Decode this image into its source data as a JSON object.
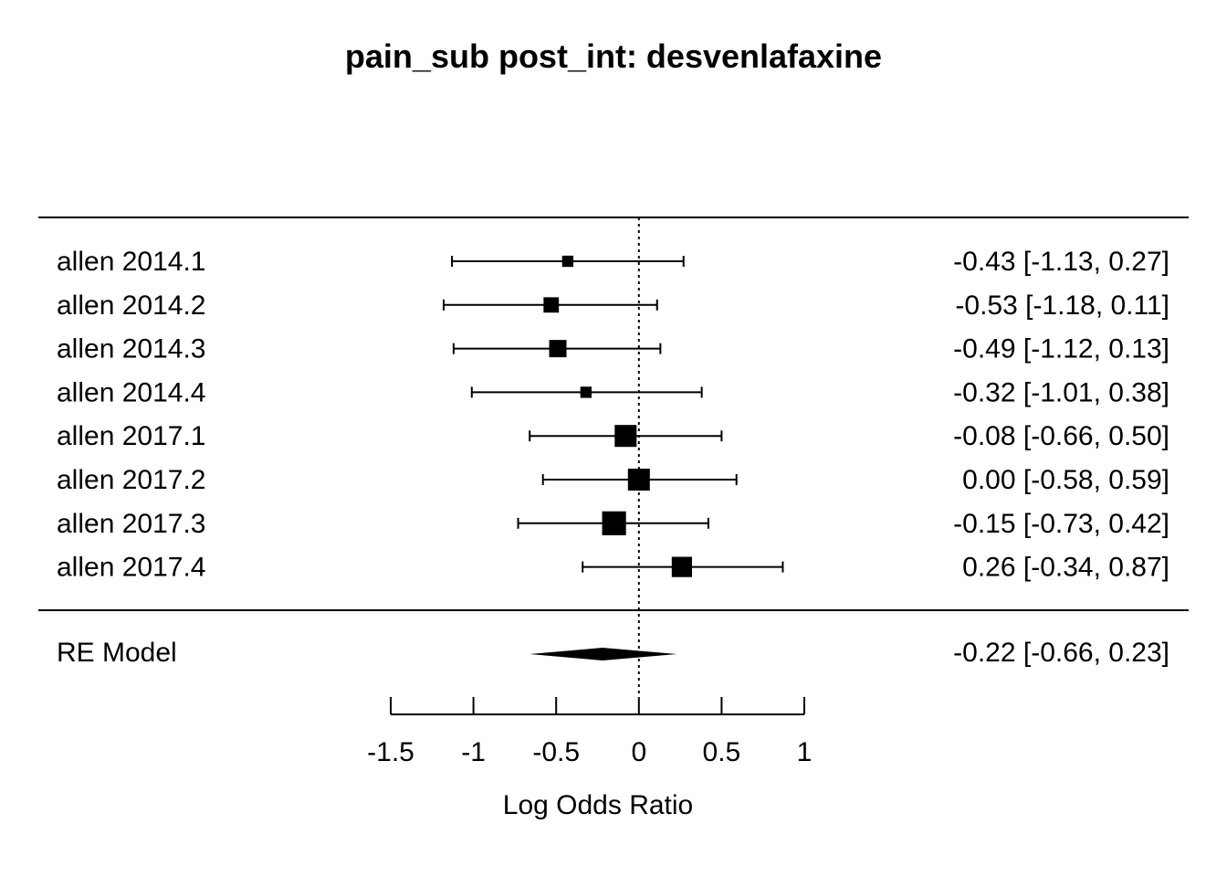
{
  "chart_data": {
    "type": "forest",
    "title": "pain_sub post_int: desvenlafaxine",
    "xlabel": "Log Odds Ratio",
    "xlim": [
      -1.5,
      1
    ],
    "xticks": [
      -1.5,
      -1,
      -0.5,
      0,
      0.5,
      1
    ],
    "xtick_labels": [
      "-1.5",
      "-1",
      "-0.5",
      "0",
      "0.5",
      "1"
    ],
    "reference_line": 0,
    "studies": [
      {
        "label": "allen 2014.1",
        "estimate": -0.43,
        "lower": -1.13,
        "upper": 0.27,
        "text": "-0.43 [-1.13, 0.27]",
        "weight": 0.35
      },
      {
        "label": "allen 2014.2",
        "estimate": -0.53,
        "lower": -1.18,
        "upper": 0.11,
        "text": "-0.53 [-1.18, 0.11]",
        "weight": 0.6
      },
      {
        "label": "allen 2014.3",
        "estimate": -0.49,
        "lower": -1.12,
        "upper": 0.13,
        "text": "-0.49 [-1.12, 0.13]",
        "weight": 0.72
      },
      {
        "label": "allen 2014.4",
        "estimate": -0.32,
        "lower": -1.01,
        "upper": 0.38,
        "text": "-0.32 [-1.01, 0.38]",
        "weight": 0.35
      },
      {
        "label": "allen 2017.1",
        "estimate": -0.08,
        "lower": -0.66,
        "upper": 0.5,
        "text": "-0.08 [-0.66, 0.50]",
        "weight": 1.0
      },
      {
        "label": "allen 2017.2",
        "estimate": 0.0,
        "lower": -0.58,
        "upper": 0.59,
        "text": "0.00 [-0.58, 0.59]",
        "weight": 1.0
      },
      {
        "label": "allen 2017.3",
        "estimate": -0.15,
        "lower": -0.73,
        "upper": 0.42,
        "text": "-0.15 [-0.73, 0.42]",
        "weight": 1.12
      },
      {
        "label": "allen 2017.4",
        "estimate": 0.26,
        "lower": -0.34,
        "upper": 0.87,
        "text": "0.26 [-0.34, 0.87]",
        "weight": 0.9
      }
    ],
    "summary": {
      "label": "RE Model",
      "estimate": -0.22,
      "lower": -0.66,
      "upper": 0.23,
      "text": "-0.22 [-0.66, 0.23]"
    }
  }
}
